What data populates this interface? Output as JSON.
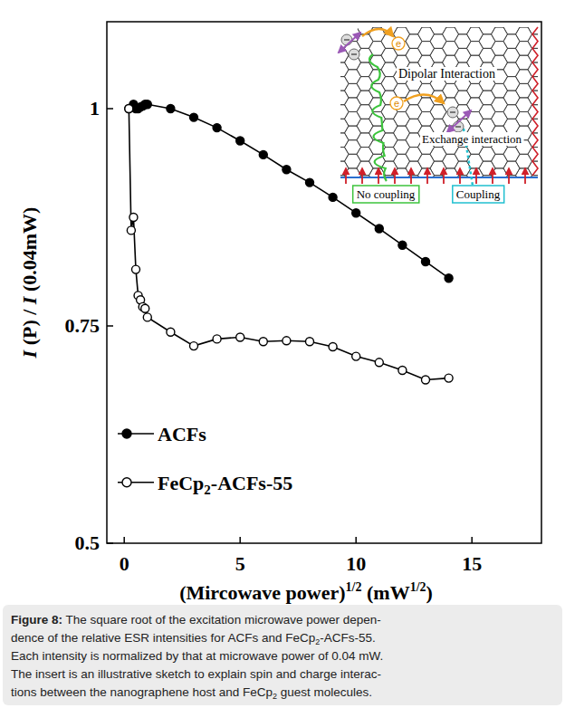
{
  "chart_data": {
    "type": "line",
    "xlabel": [
      {
        "text": "(Mircowave power)"
      },
      {
        "text": "1/2",
        "sup": true
      },
      {
        "text": " (mW"
      },
      {
        "text": "1/2",
        "sup": true
      },
      {
        "text": ")"
      }
    ],
    "ylabel": [
      {
        "text": "I",
        "italic": true
      },
      {
        "text": " (P) / "
      },
      {
        "text": "I",
        "italic": true
      },
      {
        "text": " (0.04mW)"
      }
    ],
    "xlim": [
      -0.75,
      18
    ],
    "ylim": [
      0.5,
      1.1
    ],
    "xticks": [
      0,
      5,
      10,
      15
    ],
    "yticks": [
      0.5,
      0.75,
      1
    ],
    "legend": "lower left",
    "series": [
      {
        "name": "ACFs",
        "color": "#000000",
        "marker": "circle",
        "line_style": "solid",
        "x": [
          0.2,
          0.4,
          0.5,
          0.6,
          0.7,
          0.8,
          0.9,
          1,
          2,
          3,
          4,
          5,
          6,
          7,
          8,
          9,
          10,
          11,
          12,
          13,
          14
        ],
        "values": [
          1.0,
          1.005,
          1.0,
          1.0,
          1.002,
          1.003,
          1.005,
          1.005,
          1.0,
          0.99,
          0.978,
          0.963,
          0.947,
          0.93,
          0.915,
          0.898,
          0.88,
          0.862,
          0.843,
          0.824,
          0.805
        ]
      },
      {
        "name": "FeCp2-ACFs-55",
        "color": "#000000",
        "marker": "hollow",
        "line_style": "solid",
        "x": [
          0.2,
          0.3,
          0.4,
          0.5,
          0.6,
          0.7,
          0.8,
          0.9,
          1,
          2,
          3,
          4,
          5,
          6,
          7,
          8,
          9,
          10,
          11,
          12,
          13,
          14
        ],
        "values": [
          1.0,
          0.86,
          0.875,
          0.815,
          0.785,
          0.78,
          0.772,
          0.77,
          0.76,
          0.743,
          0.727,
          0.735,
          0.737,
          0.732,
          0.733,
          0.732,
          0.726,
          0.715,
          0.708,
          0.699,
          0.688,
          0.69
        ]
      }
    ],
    "inset": {
      "dipolar": "Dipolar Interaction",
      "exchange": "Exchange interaction",
      "no_coupling": "No coupling",
      "coupling": "Coupling",
      "electron": "e"
    }
  },
  "caption": {
    "lines": [
      [
        {
          "text": "Figure 8:",
          "bold": true
        },
        {
          "text": " The square root of the excitation microwave power depen-"
        }
      ],
      [
        {
          "text": "dence of the relative ESR intensities for ACFs and FeCp"
        },
        {
          "text": "2",
          "sub": true
        },
        {
          "text": "-ACFs-55."
        }
      ],
      [
        {
          "text": "Each intensity is normalized by that at microwave power of 0.04 mW."
        }
      ],
      [
        {
          "text": "The insert is an illustrative sketch to explain spin and charge interac-"
        }
      ],
      [
        {
          "text": "tions between the nanographene host and FeCp"
        },
        {
          "text": "2",
          "sub": true
        },
        {
          "text": " guest molecules."
        }
      ]
    ]
  }
}
